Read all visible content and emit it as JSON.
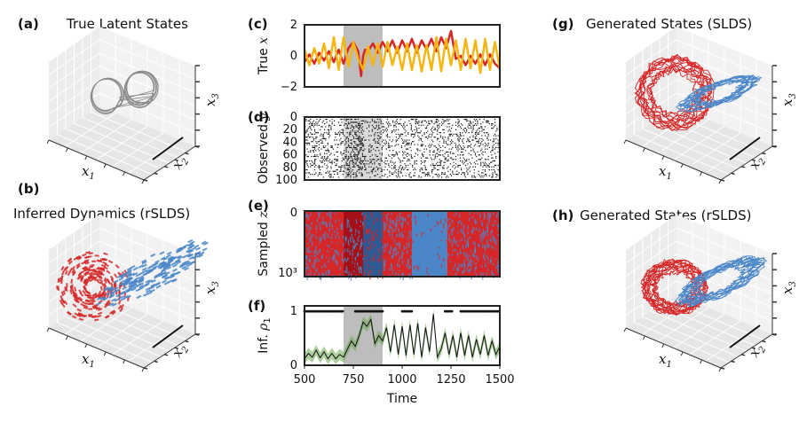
{
  "panels": {
    "a": {
      "label": "(a)",
      "title": "True Latent States",
      "x1": "x",
      "x1_sub": "1",
      "x2": "x",
      "x2_sub": "2",
      "x3": "x",
      "x3_sub": "3"
    },
    "b": {
      "label": "(b)",
      "title": "Inferred Dynamics (rSLDS)",
      "x1": "x",
      "x1_sub": "1",
      "x2": "x",
      "x2_sub": "2",
      "x3": "x",
      "x3_sub": "3"
    },
    "c": {
      "label": "(c)"
    },
    "d": {
      "label": "(d)"
    },
    "e": {
      "label": "(e)"
    },
    "f": {
      "label": "(f)"
    },
    "g": {
      "label": "(g)",
      "title": "Generated States (SLDS)",
      "x1": "x",
      "x1_sub": "1",
      "x2": "x",
      "x2_sub": "2",
      "x3": "x",
      "x3_sub": "3"
    },
    "h": {
      "label": "(h)",
      "title": "Generated States (rSLDS)",
      "x1": "x",
      "x1_sub": "1",
      "x2": "x",
      "x2_sub": "2",
      "x3": "x",
      "x3_sub": "3"
    }
  },
  "colors": {
    "red": "#d62728",
    "darkred": "#a50f15",
    "blue": "#4a86c8",
    "darkblue": "#2b5a94",
    "yellow": "#f5b512",
    "green": "#6aa84f",
    "shade": "#bdbdbd",
    "gray": "#7f7f7f"
  },
  "chart_data": [
    {
      "type": "line",
      "panel": "c",
      "ylabel": "True x",
      "ylabel_text": "True ",
      "ylabel_var": "x",
      "xlim": [
        500,
        1500
      ],
      "ylim": [
        -2,
        2
      ],
      "yticks": [
        "2",
        "0",
        "−2"
      ],
      "ytick_values": [
        2,
        0,
        -2
      ],
      "shaded_interval": [
        700,
        900
      ],
      "series": [
        {
          "color": "red",
          "x": [
            500,
            525,
            550,
            575,
            600,
            625,
            650,
            675,
            700,
            725,
            750,
            775,
            790,
            800,
            810,
            825,
            850,
            875,
            900,
            925,
            950,
            975,
            1000,
            1025,
            1050,
            1075,
            1100,
            1125,
            1150,
            1175,
            1200,
            1225,
            1250,
            1275,
            1300,
            1325,
            1350,
            1375,
            1400,
            1425,
            1450,
            1475,
            1500
          ],
          "y": [
            -0.4,
            0.1,
            -0.5,
            0.2,
            -0.3,
            0.3,
            -0.4,
            0.4,
            -0.5,
            0.5,
            0.9,
            0.3,
            -1.3,
            0.0,
            0.4,
            0.3,
            0.8,
            0.2,
            0.9,
            0.3,
            1.0,
            0.2,
            1.0,
            0.3,
            1.1,
            0.2,
            1.0,
            0.4,
            1.1,
            0.3,
            1.2,
            0.5,
            1.6,
            -0.2,
            0.0,
            -0.6,
            0.0,
            -0.5,
            0.1,
            -0.6,
            0.1,
            -0.5,
            -0.8
          ]
        },
        {
          "color": "yellow",
          "x": [
            500,
            525,
            550,
            575,
            600,
            625,
            650,
            675,
            700,
            725,
            750,
            775,
            800,
            825,
            850,
            875,
            900,
            925,
            950,
            975,
            1000,
            1025,
            1050,
            1075,
            1100,
            1125,
            1150,
            1175,
            1200,
            1225,
            1250,
            1275,
            1300,
            1325,
            1350,
            1375,
            1400,
            1425,
            1450,
            1475,
            1500
          ],
          "y": [
            0.4,
            -0.6,
            0.5,
            -0.5,
            0.8,
            -0.8,
            1.2,
            -0.9,
            1.2,
            -0.7,
            0.9,
            -0.2,
            -0.9,
            0.6,
            -0.6,
            0.8,
            -0.7,
            0.9,
            -0.6,
            0.6,
            -0.9,
            0.8,
            -0.9,
            0.7,
            -1.0,
            0.7,
            -0.9,
            1.2,
            -1.0,
            1.1,
            -0.6,
            1.0,
            -0.9,
            1.1,
            -0.8,
            1.0,
            -1.1,
            1.1,
            -0.9,
            0.9,
            -0.8
          ]
        }
      ]
    },
    {
      "type": "heatmap",
      "panel": "d",
      "ylabel": "Observed y",
      "ylabel_text": "Observed ",
      "ylabel_var": "y",
      "xlim": [
        500,
        1500
      ],
      "ylim": [
        0,
        100
      ],
      "yticks": [
        "0",
        "20",
        "40",
        "60",
        "80",
        "100"
      ],
      "ytick_values": [
        0,
        20,
        40,
        60,
        80,
        100
      ],
      "shaded_interval": [
        700,
        900
      ],
      "description_values": {
        "neurons": 100,
        "density": 0.22
      }
    },
    {
      "type": "heatmap",
      "panel": "e",
      "ylabel": "Sampled z",
      "ylabel_text": "Sampled ",
      "ylabel_var": "z",
      "xlim": [
        500,
        1500
      ],
      "yticks": [
        "0",
        "10³"
      ],
      "segments": [
        {
          "start": 500,
          "end": 700,
          "state": "red"
        },
        {
          "start": 700,
          "end": 800,
          "state": "darkred"
        },
        {
          "start": 800,
          "end": 900,
          "state": "darkblue"
        },
        {
          "start": 900,
          "end": 1050,
          "state": "red"
        },
        {
          "start": 1050,
          "end": 1230,
          "state": "blue"
        },
        {
          "start": 1230,
          "end": 1500,
          "state": "red"
        }
      ]
    },
    {
      "type": "line",
      "panel": "f",
      "ylabel": "Inf. ρ1",
      "ylabel_text": "Inf. ",
      "ylabel_var": "ρ",
      "ylabel_sub": "1",
      "xlabel": "Time",
      "xlim": [
        500,
        1500
      ],
      "ylim": [
        0,
        1.1
      ],
      "yticks": [
        "1",
        "0"
      ],
      "ytick_values": [
        1,
        0
      ],
      "xticks": [
        "500",
        "750",
        "1000",
        "1250",
        "1500"
      ],
      "xtick_values": [
        500,
        750,
        1000,
        1250,
        1500
      ],
      "shaded_interval": [
        700,
        900
      ],
      "series": [
        {
          "color": "green",
          "x": [
            500,
            520,
            540,
            560,
            580,
            600,
            620,
            640,
            660,
            680,
            700,
            720,
            740,
            760,
            780,
            800,
            820,
            840,
            860,
            880,
            900,
            920,
            940,
            960,
            980,
            1000,
            1020,
            1040,
            1060,
            1080,
            1100,
            1120,
            1140,
            1160,
            1180,
            1200,
            1220,
            1240,
            1260,
            1280,
            1300,
            1320,
            1340,
            1360,
            1380,
            1400,
            1420,
            1440,
            1460,
            1480,
            1500
          ],
          "y": [
            0.12,
            0.22,
            0.15,
            0.28,
            0.14,
            0.25,
            0.12,
            0.22,
            0.12,
            0.2,
            0.15,
            0.3,
            0.45,
            0.35,
            0.55,
            0.8,
            0.72,
            0.85,
            0.4,
            0.55,
            0.45,
            0.7,
            0.25,
            0.75,
            0.2,
            0.72,
            0.18,
            0.75,
            0.2,
            0.78,
            0.15,
            0.7,
            0.25,
            0.95,
            0.15,
            0.3,
            0.6,
            0.2,
            0.55,
            0.15,
            0.6,
            0.18,
            0.55,
            0.15,
            0.48,
            0.2,
            0.55,
            0.18,
            0.45,
            0.2,
            0.35
          ]
        }
      ],
      "event_markers": {
        "y": 1,
        "x_groups": [
          [
            500,
            700
          ],
          [
            760,
            900
          ],
          [
            1000,
            1050
          ],
          [
            1220,
            1260
          ],
          [
            1300,
            1500
          ]
        ]
      }
    },
    {
      "type": "line",
      "panel": "a",
      "description": "Lorenz attractor trajectory",
      "color": "gray"
    },
    {
      "type": "scatter",
      "panel": "b",
      "description": "Inferred dynamics flow field",
      "colors": [
        "red",
        "blue"
      ]
    },
    {
      "type": "line",
      "panel": "g",
      "description": "Generated trajectories",
      "colors": [
        "red",
        "blue"
      ]
    },
    {
      "type": "line",
      "panel": "h",
      "description": "Generated trajectories",
      "colors": [
        "red",
        "blue"
      ]
    }
  ]
}
